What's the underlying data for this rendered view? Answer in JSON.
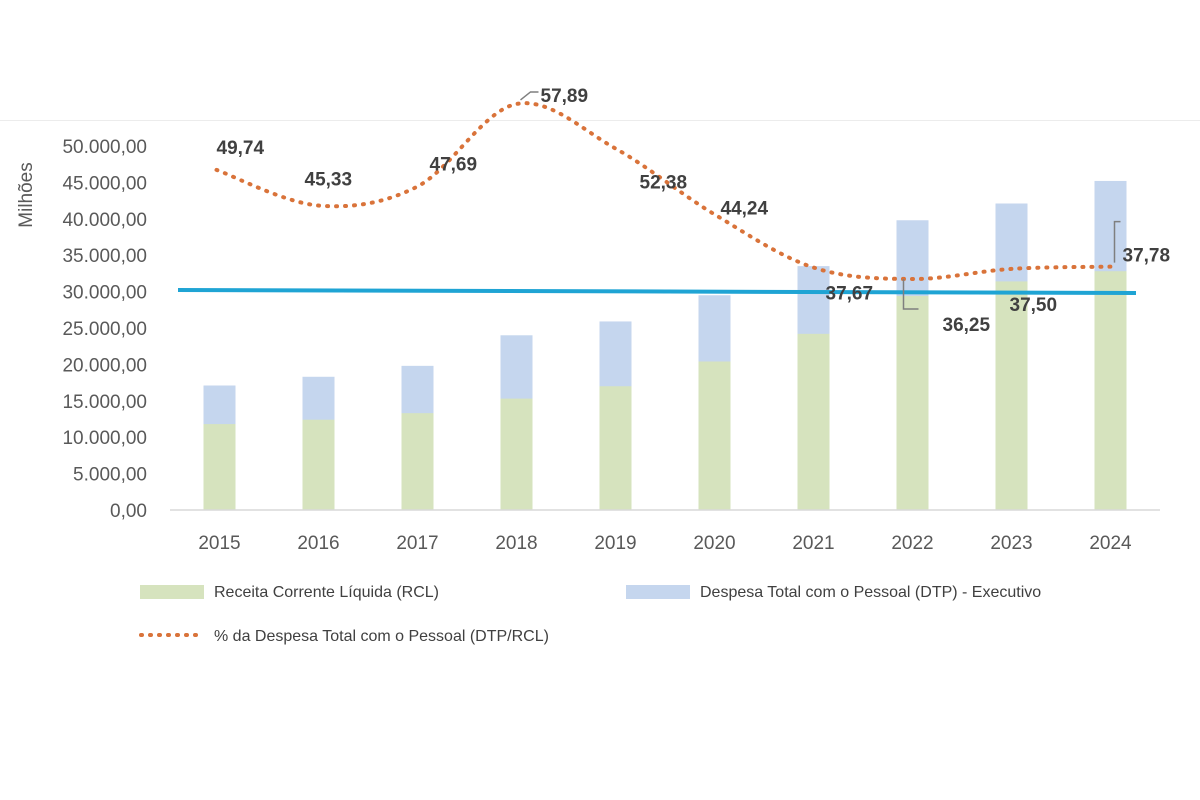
{
  "chart_data": {
    "type": "bar",
    "title": "",
    "xlabel": "",
    "ylabel": "Milhões",
    "ylim": [
      0,
      50000
    ],
    "yticks": [
      "0,00",
      "5.000,00",
      "10.000,00",
      "15.000,00",
      "20.000,00",
      "25.000,00",
      "30.000,00",
      "35.000,00",
      "40.000,00",
      "45.000,00",
      "50.000,00"
    ],
    "categories": [
      "2015",
      "2016",
      "2017",
      "2018",
      "2019",
      "2020",
      "2021",
      "2022",
      "2023",
      "2024"
    ],
    "series": [
      {
        "name": "Receita Corrente Líquida (RCL)",
        "type": "stacked-bar-lower",
        "color": "#d6e3be",
        "values": [
          11800,
          12400,
          13300,
          15300,
          17000,
          20400,
          24200,
          29400,
          31400,
          32800
        ]
      },
      {
        "name": "Despesa Total com o Pessoal (DTP) - Executivo",
        "type": "stacked-bar-total",
        "color": "#c5d6ee",
        "values": [
          17100,
          18300,
          19800,
          24000,
          25900,
          29500,
          33500,
          39800,
          42100,
          45200
        ]
      },
      {
        "name": "% da Despesa Total com o Pessoal (DTP/RCL)",
        "type": "line",
        "style": "dotted",
        "color": "#d9733a",
        "values": [
          49.74,
          45.33,
          47.69,
          57.89,
          52.38,
          44.24,
          37.67,
          36.25,
          37.5,
          37.78
        ],
        "labels": [
          "49,74",
          "45,33",
          "47,69",
          "57,89",
          "52,38",
          "44,24",
          "37,67",
          "36,25",
          "37,50",
          "37,78"
        ]
      }
    ],
    "reference_line": {
      "color": "#1fa4d4"
    },
    "legend_position": "bottom"
  }
}
